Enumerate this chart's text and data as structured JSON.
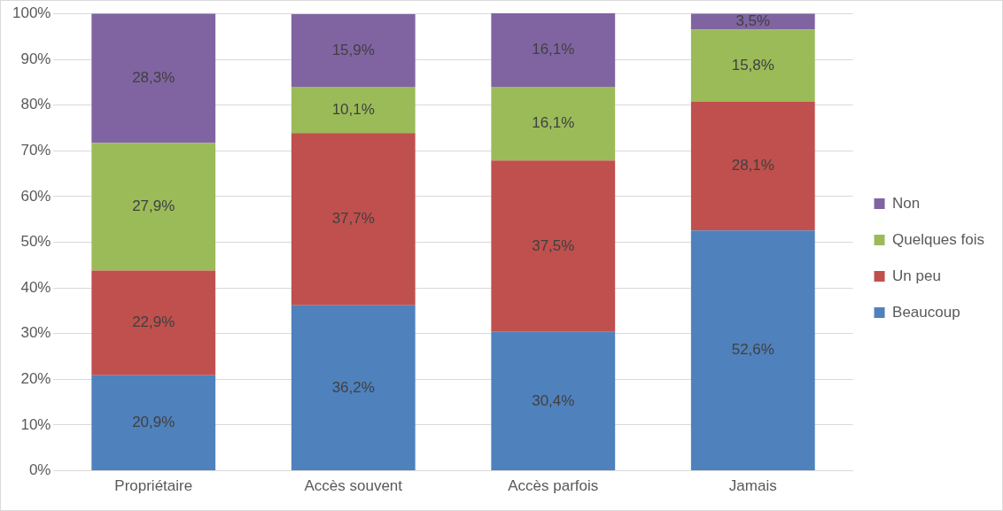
{
  "chart_data": {
    "type": "bar",
    "stacked": true,
    "categories": [
      "Propriétaire",
      "Accès souvent",
      "Accès parfois",
      "Jamais"
    ],
    "series": [
      {
        "name": "Beaucoup",
        "color": "#4f81bd",
        "values": [
          20.9,
          36.2,
          30.4,
          52.6
        ],
        "value_labels": [
          "20,9%",
          "36,2%",
          "30,4%",
          "52,6%"
        ]
      },
      {
        "name": "Un peu",
        "color": "#c0504d",
        "values": [
          22.9,
          37.7,
          37.5,
          28.1
        ],
        "value_labels": [
          "22,9%",
          "37,7%",
          "37,5%",
          "28,1%"
        ]
      },
      {
        "name": "Quelques fois",
        "color": "#9bbb59",
        "values": [
          27.9,
          10.1,
          16.1,
          15.8
        ],
        "value_labels": [
          "27,9%",
          "10,1%",
          "16,1%",
          "15,8%"
        ]
      },
      {
        "name": "Non",
        "color": "#8064a2",
        "values": [
          28.3,
          15.9,
          16.1,
          3.5
        ],
        "value_labels": [
          "28,3%",
          "15,9%",
          "16,1%",
          "3,5%"
        ]
      }
    ],
    "ylim": [
      0,
      100.1
    ],
    "yticks": [
      {
        "value": 0,
        "label": "0%"
      },
      {
        "value": 10,
        "label": "10%"
      },
      {
        "value": 20,
        "label": "20%"
      },
      {
        "value": 30,
        "label": "30%"
      },
      {
        "value": 40,
        "label": "40%"
      },
      {
        "value": 50,
        "label": "50%"
      },
      {
        "value": 60,
        "label": "60%"
      },
      {
        "value": 70,
        "label": "70%"
      },
      {
        "value": 80,
        "label": "80%"
      },
      {
        "value": 90,
        "label": "90%"
      },
      {
        "value": 100,
        "label": "100%"
      }
    ],
    "grid": "y",
    "legend": "right"
  }
}
